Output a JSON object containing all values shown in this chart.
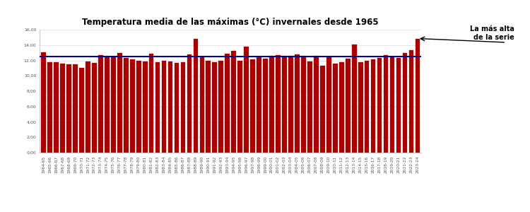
{
  "title": "Temperatura media de las máximas (°C) invernales desde 1965",
  "ylabel_ticks": [
    "0,00",
    "2,00",
    "4,00",
    "6,00",
    "8,00",
    "10,00",
    "12,00",
    "14,00",
    "16,00"
  ],
  "ytick_vals": [
    0,
    2,
    4,
    6,
    8,
    10,
    12,
    14,
    16
  ],
  "ylim": [
    0,
    16
  ],
  "mean_line": 12.55,
  "bar_color": "#AA0000",
  "mean_line_color": "#00008B",
  "annotation_text": "La más alta\nde la serie",
  "years": [
    "1964-65",
    "1965-66",
    "1966-67",
    "1967-68",
    "1968-69",
    "1969-70",
    "1970-71",
    "1971-72",
    "1972-73",
    "1973-74",
    "1974-75",
    "1975-76",
    "1976-77",
    "1977-78",
    "1978-79",
    "1979-80",
    "1980-81",
    "1981-82",
    "1982-83",
    "1983-84",
    "1984-85",
    "1985-86",
    "1986-87",
    "1987-88",
    "1988-89",
    "1989-90",
    "1990-91",
    "1991-92",
    "1992-93",
    "1993-94",
    "1994-95",
    "1995-96",
    "1996-97",
    "1997-98",
    "1998-99",
    "1999-00",
    "2000-01",
    "2001-02",
    "2002-03",
    "2003-04",
    "2004-05",
    "2005-06",
    "2006-07",
    "2007-08",
    "2008-09",
    "2009-10",
    "2010-11",
    "2011-12",
    "2012-13",
    "2013-14",
    "2014-15",
    "2015-16",
    "2016-17",
    "2017-18",
    "2018-19",
    "2019-20",
    "2020-21",
    "2021-22",
    "2022-23",
    "2023-24"
  ],
  "values": [
    13.1,
    11.8,
    11.8,
    11.6,
    11.5,
    11.5,
    11.0,
    11.9,
    11.7,
    12.7,
    12.4,
    12.5,
    13.0,
    12.3,
    12.1,
    12.0,
    11.9,
    12.9,
    11.8,
    12.0,
    11.9,
    11.7,
    11.8,
    12.8,
    14.8,
    12.5,
    12.0,
    11.8,
    12.0,
    12.9,
    13.2,
    12.0,
    13.8,
    12.1,
    12.5,
    12.2,
    12.6,
    12.7,
    12.6,
    12.6,
    12.8,
    12.6,
    11.9,
    12.6,
    11.3,
    12.5,
    11.6,
    11.8,
    12.2,
    14.1,
    11.8,
    12.0,
    12.1,
    12.3,
    12.7,
    12.5,
    12.3,
    13.0,
    13.3,
    14.8
  ],
  "background_color": "#FFFFFF",
  "outer_bg": "#999999",
  "title_fontsize": 8.5,
  "tick_fontsize": 4.5,
  "bar_width": 0.75
}
